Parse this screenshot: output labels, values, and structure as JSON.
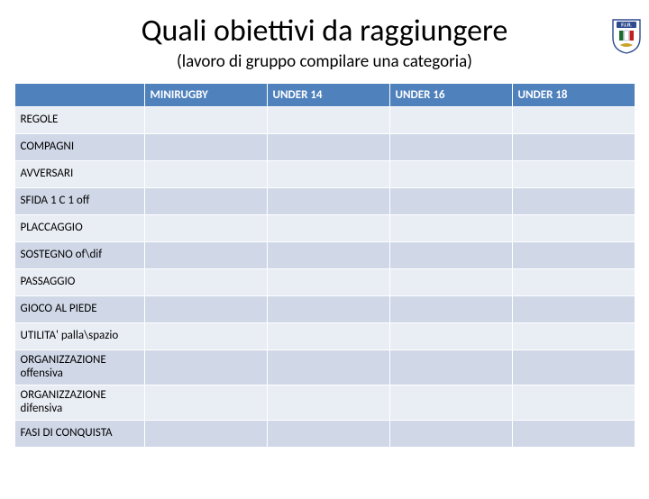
{
  "title": "Quali obiettivi da raggiungere",
  "subtitle": "(lavoro di gruppo compilare una categoria)",
  "columns": [
    "MINIRUGBY",
    "UNDER 14",
    "UNDER 16",
    "UNDER 18"
  ],
  "rows": [
    {
      "label": "REGOLE",
      "lines": 1
    },
    {
      "label": "COMPAGNI",
      "lines": 1
    },
    {
      "label": "AVVERSARI",
      "lines": 1
    },
    {
      "label": "SFIDA 1 C 1 off",
      "lines": 1
    },
    {
      "label": "PLACCAGGIO",
      "lines": 1
    },
    {
      "label": "SOSTEGNO of\\dif",
      "lines": 1
    },
    {
      "label": "PASSAGGIO",
      "lines": 1
    },
    {
      "label": "GIOCO AL PIEDE",
      "lines": 1
    },
    {
      "label": "UTILITA' palla\\spazio",
      "lines": 1
    },
    {
      "label": "ORGANIZZAZIONE offensiva",
      "lines": 2
    },
    {
      "label": "ORGANIZZAZIONE difensiva",
      "lines": 2
    },
    {
      "label": "FASI DI CONQUISTA",
      "lines": 1
    }
  ],
  "colors": {
    "header_bg": "#4f81bd",
    "row_bg_a": "#e9edf4",
    "row_bg_b": "#d0d8e8",
    "border": "#ffffff",
    "logo_blue": "#2e4b8f",
    "logo_green": "#1a6b2b",
    "logo_gold": "#c9a227"
  }
}
